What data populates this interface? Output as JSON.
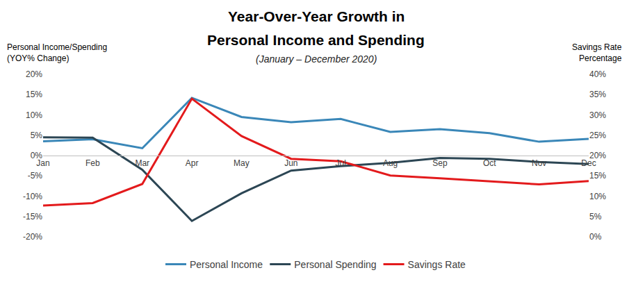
{
  "chart_data": {
    "type": "line",
    "title": "Year-Over-Year Growth in\nPersonal Income and Spending",
    "subtitle": "(January – December 2020)",
    "y_label": "Personal Income/Spending\n(YOY% Change)",
    "y2_label": "Savings Rate\nPercentage",
    "categories": [
      "Jan",
      "Feb",
      "Mar",
      "Apr",
      "May",
      "Jun",
      "Jul",
      "Aug",
      "Sep",
      "Oct",
      "Nov",
      "Dec"
    ],
    "series": [
      {
        "name": "Personal Income",
        "color": "#3a87b8",
        "values": [
          3.5,
          4,
          1.8,
          14.2,
          9.5,
          8.2,
          9,
          5.8,
          6.5,
          5.5,
          3.4,
          4.1
        ]
      },
      {
        "name": "Personal Spending",
        "color": "#2c4654",
        "values": [
          4.5,
          4.4,
          -3.5,
          -16.1,
          -9.3,
          -3.7,
          -2.6,
          -1.8,
          -0.6,
          -0.8,
          -1.6,
          -2.1
        ]
      },
      {
        "name": "Savings Rate",
        "color": "#e31a1c",
        "axis": "y2",
        "values": [
          7.7,
          8.3,
          13,
          34,
          24.8,
          19.2,
          18.6,
          15.1,
          14.4,
          13.6,
          12.9,
          13.7
        ]
      }
    ],
    "ylim": [
      -20,
      20
    ],
    "yticks": [
      {
        "value": -20,
        "label": "-20%"
      },
      {
        "value": -15,
        "label": "-15%"
      },
      {
        "value": -10,
        "label": "-10%"
      },
      {
        "value": -5,
        "label": "-5%"
      },
      {
        "value": 0,
        "label": "0%"
      },
      {
        "value": 5,
        "label": "5%"
      },
      {
        "value": 10,
        "label": "10%"
      },
      {
        "value": 15,
        "label": "15%"
      },
      {
        "value": 20,
        "label": "20%"
      }
    ],
    "y2lim": [
      0,
      40
    ],
    "y2ticks": [
      {
        "value": 0,
        "label": "0%"
      },
      {
        "value": 5,
        "label": "5%"
      },
      {
        "value": 10,
        "label": "10%"
      },
      {
        "value": 15,
        "label": "15%"
      },
      {
        "value": 20,
        "label": "20%"
      },
      {
        "value": 25,
        "label": "25%"
      },
      {
        "value": 30,
        "label": "30%"
      },
      {
        "value": 35,
        "label": "35%"
      },
      {
        "value": 40,
        "label": "40%"
      }
    ],
    "grid": false,
    "legend": "bottom"
  }
}
